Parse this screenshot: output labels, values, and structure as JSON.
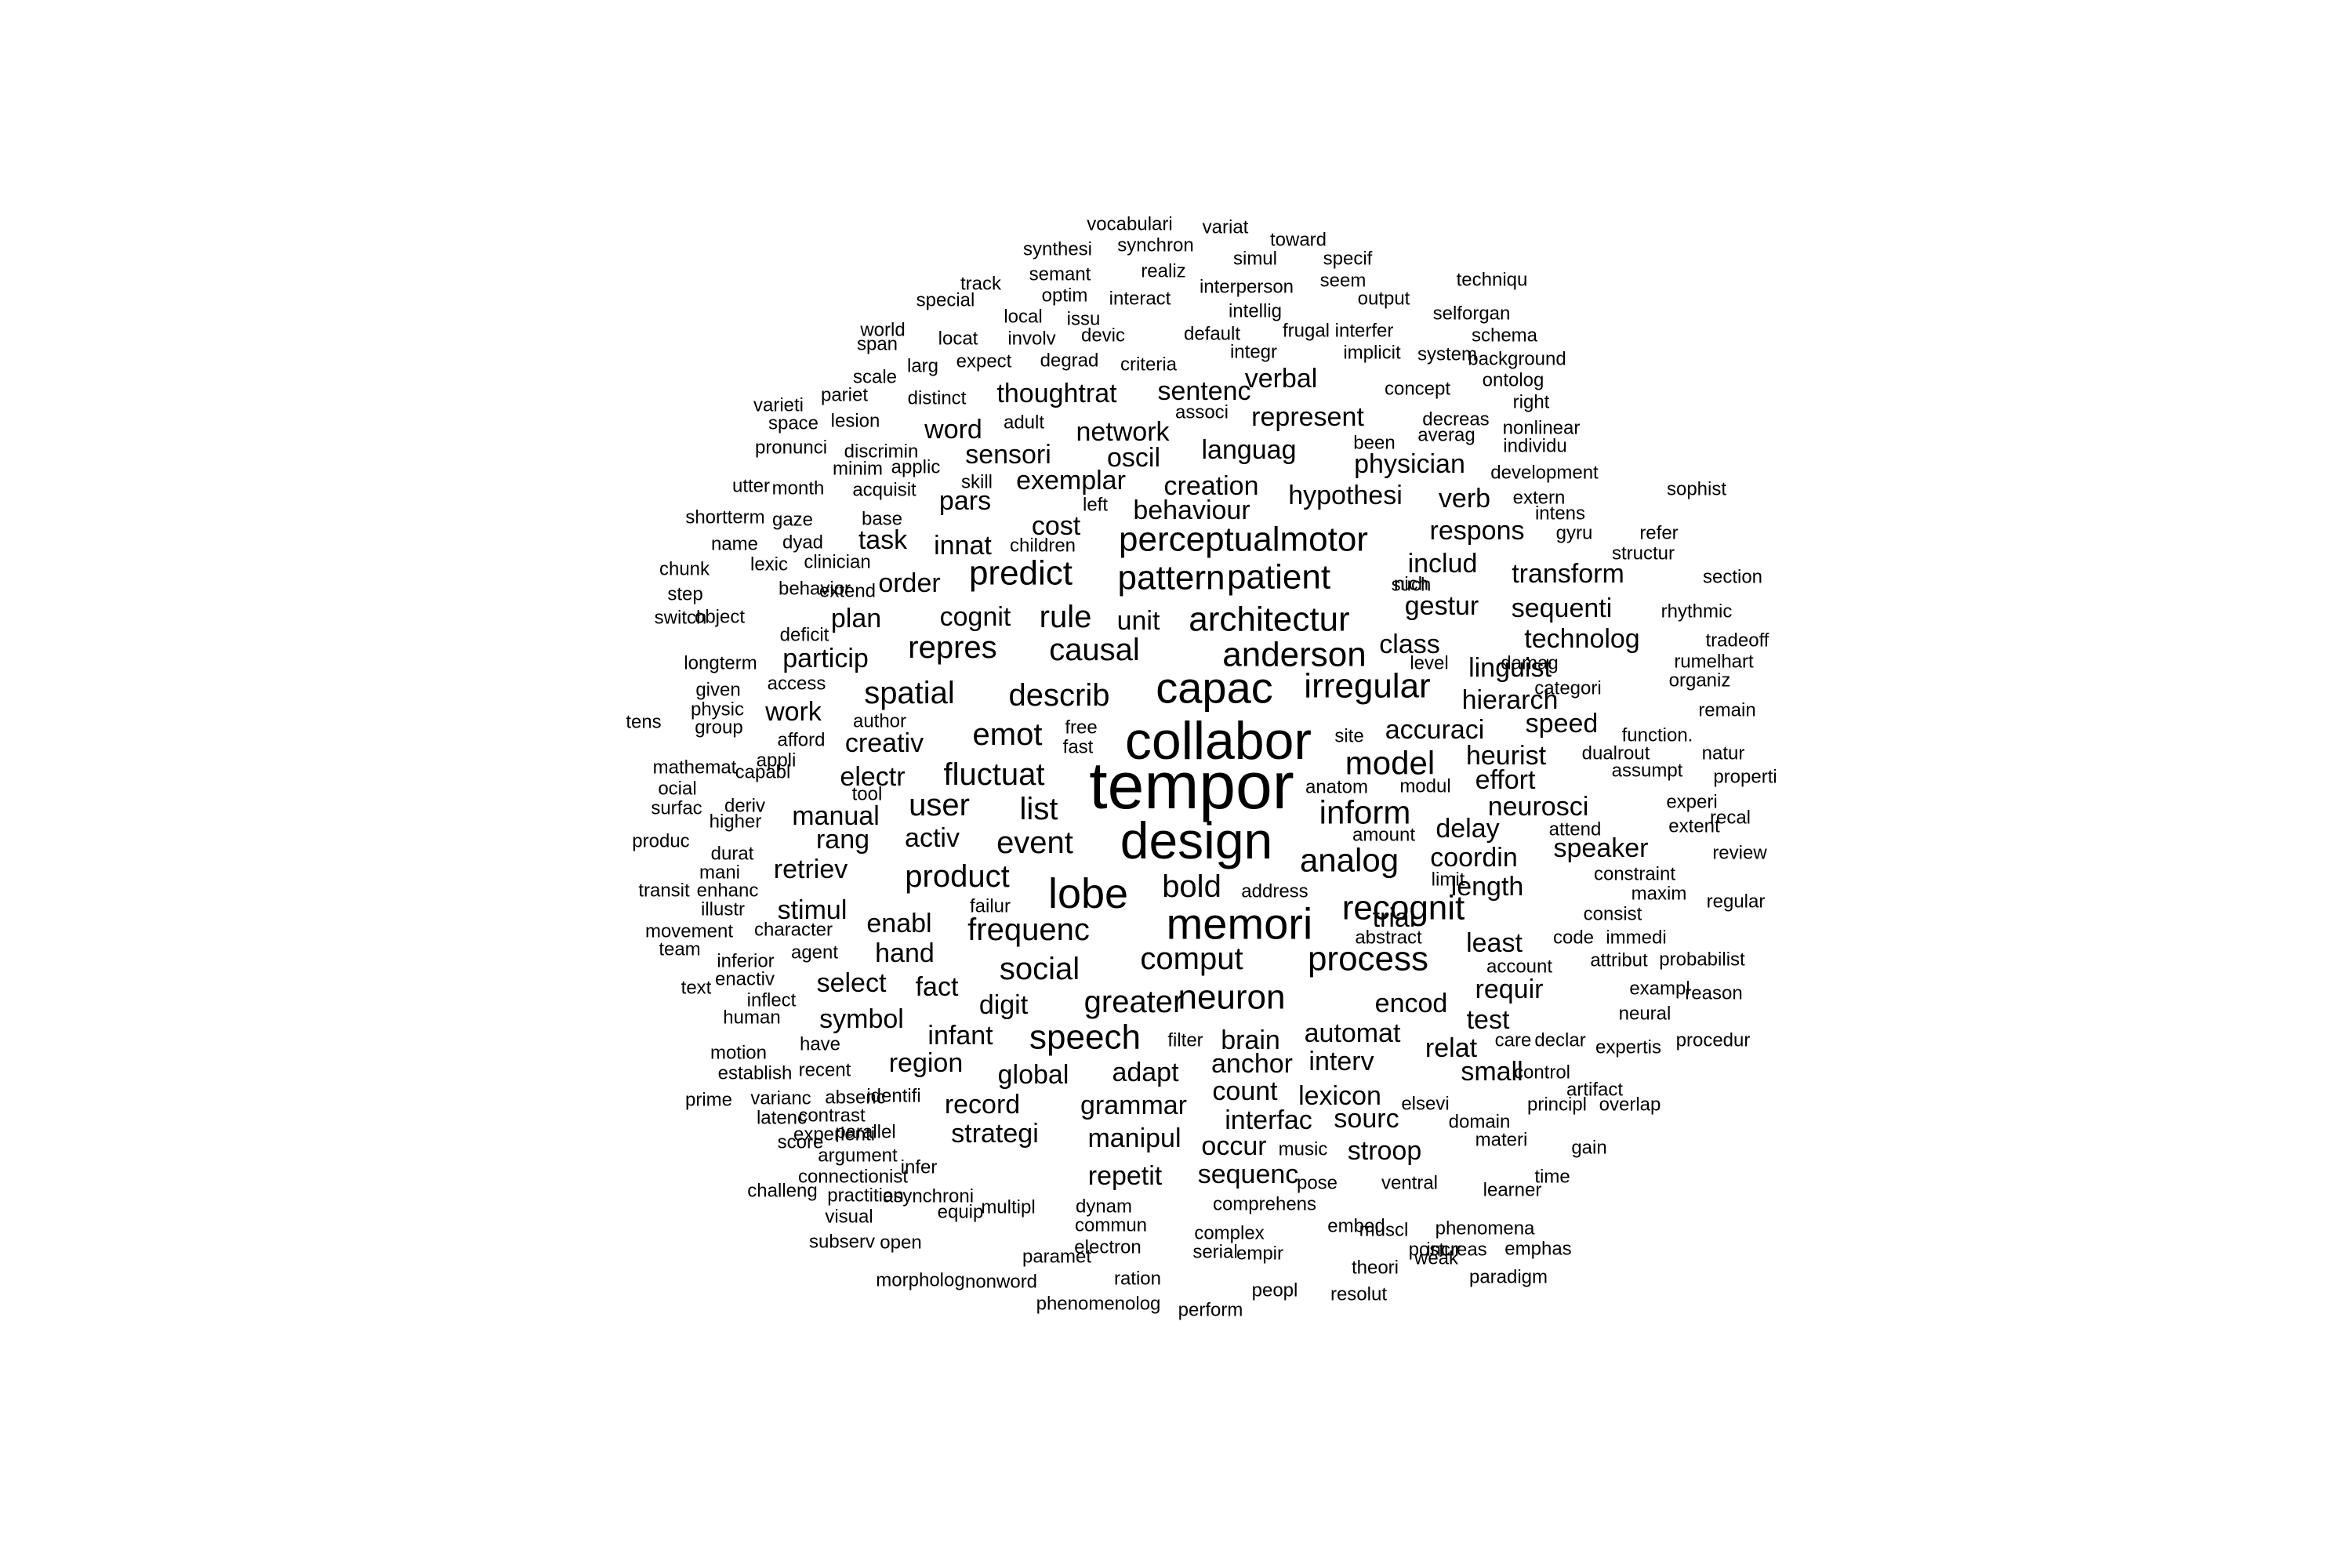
{
  "text_color": "#000000",
  "background_color": "#ffffff",
  "words": [
    "tempor",
    "collabor",
    "design",
    "capac",
    "memori",
    "lobe",
    "speech",
    "neuron",
    "anderson",
    "architectur",
    "irregular",
    "recognit",
    "process",
    "predict",
    "pattern",
    "patient",
    "perceptualmotor",
    "model",
    "inform",
    "analog",
    "spatial",
    "describ",
    "repres",
    "causal",
    "rule",
    "emot",
    "fluctuat",
    "user",
    "list",
    "event",
    "product",
    "frequenc",
    "social",
    "comput",
    "bold",
    "greater",
    "digit",
    "infant",
    "region",
    "symbol",
    "select",
    "fact",
    "hand",
    "enabl",
    "stimul",
    "retriev",
    "rang",
    "manual",
    "activ",
    "electr",
    "creativ",
    "work",
    "particip",
    "plan",
    "cognit",
    "unit",
    "order",
    "innat",
    "task",
    "cost",
    "pars",
    "exemplar",
    "sensori",
    "word",
    "network",
    "oscil",
    "thoughtrat",
    "sentenc",
    "verbal",
    "represent",
    "languag",
    "creation",
    "behaviour",
    "hypothesi",
    "physician",
    "verb",
    "respons",
    "includ",
    "transform",
    "gestur",
    "sequenti",
    "class",
    "technolog",
    "linguist",
    "hierarch",
    "accuraci",
    "speed",
    "heurist",
    "effort",
    "neurosci",
    "delay",
    "coordin",
    "speaker",
    "length",
    "trial",
    "least",
    "requir",
    "test",
    "relat",
    "small",
    "encod",
    "automat",
    "brain",
    "anchor",
    "interv",
    "adapt",
    "global",
    "record",
    "strategi",
    "grammar",
    "manipul",
    "count",
    "interfac",
    "lexicon",
    "sourc",
    "occur",
    "sequenc",
    "stroop",
    "repetit",
    "vocabulari",
    "variat",
    "synthesi",
    "synchron",
    "toward",
    "simul",
    "specif",
    "semant",
    "realiz",
    "track",
    "interperson",
    "seem",
    "techniqu",
    "special",
    "optim",
    "interact",
    "output",
    "local",
    "issu",
    "intellig",
    "frugal",
    "interfer",
    "selforgan",
    "world",
    "involv",
    "devic",
    "default",
    "schema",
    "span",
    "locat",
    "integr",
    "system",
    "background",
    "implicit",
    "larg",
    "expect",
    "degrad",
    "criteria",
    "scale",
    "ontolog",
    "pariet",
    "distinct",
    "concept",
    "right",
    "varieti",
    "associ",
    "space",
    "lesion",
    "adult",
    "decreas",
    "nonlinear",
    "averag",
    "pronunci",
    "discrimin",
    "been",
    "individu",
    "minim",
    "applic",
    "development",
    "utter",
    "month",
    "skill",
    "acquisit",
    "extern",
    "sophist",
    "left",
    "shortterm",
    "gaze",
    "base",
    "intens",
    "children",
    "gyru",
    "refer",
    "name",
    "dyad",
    "lexic",
    "clinician",
    "structur",
    "such",
    "chunk",
    "nich",
    "section",
    "step",
    "behavior",
    "extend",
    "rhythmic",
    "switch",
    "object",
    "deficit",
    "tradeoff",
    "longterm",
    "level",
    "damag",
    "rumelhart",
    "given",
    "access",
    "categori",
    "organiz",
    "physic",
    "tens",
    "author",
    "remain",
    "group",
    "afford",
    "free",
    "site",
    "function.",
    "mathemat",
    "appli",
    "fast",
    "dualrout",
    "natur",
    "ocial",
    "capabl",
    "anatom",
    "modul",
    "assumpt",
    "properti",
    "surfac",
    "tool",
    "experi",
    "deriv",
    "higher",
    "extent",
    "recal",
    "attend",
    "produc",
    "amount",
    "durat",
    "review",
    "mani",
    "limit",
    "constraint",
    "transit",
    "enhanc",
    "address",
    "maxim",
    "regular",
    "illustr",
    "failur",
    "consist",
    "movement",
    "character",
    "immedi",
    "team",
    "abstract",
    "inferior",
    "agent",
    "code",
    "account",
    "attribut",
    "probabilist",
    "text",
    "enactiv",
    "exampl",
    "reason",
    "inflect",
    "neural",
    "human",
    "filter",
    "care",
    "declar",
    "motion",
    "have",
    "expertis",
    "procedur",
    "establish",
    "recent",
    "control",
    "identifi",
    "artifact",
    "prime",
    "varianc",
    "absenc",
    "elsevi",
    "principl",
    "overlap",
    "latenc",
    "contrast",
    "domain",
    "parallel",
    "experienti",
    "score",
    "materi",
    "gain",
    "argument",
    "music",
    "infer",
    "connectionist",
    "pose",
    "ventral",
    "time",
    "challeng",
    "practition",
    "learner",
    "asynchroni",
    "equip",
    "visual",
    "multipl",
    "dynam",
    "comprehens",
    "commun",
    "embed",
    "phenomena",
    "subserv",
    "open",
    "complex",
    "muscl",
    "electron",
    "increas",
    "postur",
    "emphas",
    "empir",
    "serial",
    "paramet",
    "theori",
    "weak",
    "paradigm",
    "morpholog",
    "nonword",
    "ration",
    "peopl",
    "resolut",
    "phenomenolog",
    "perform"
  ]
}
